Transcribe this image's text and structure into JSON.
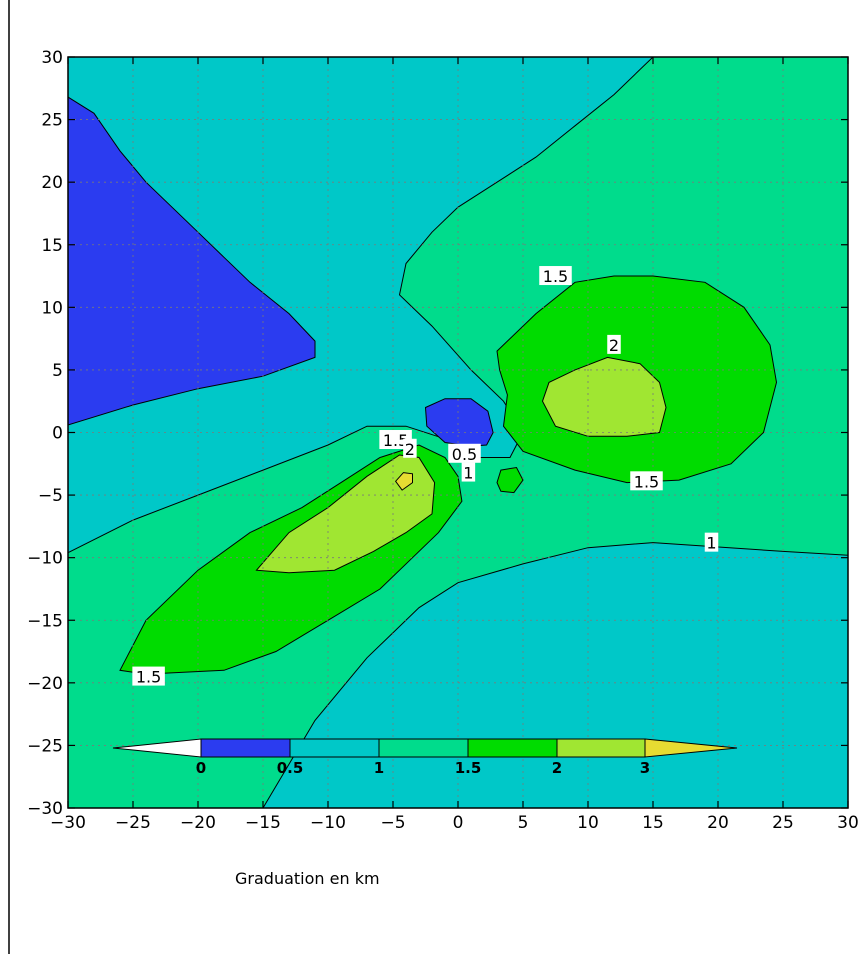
{
  "chart_data": {
    "type": "contour",
    "title": "",
    "xlabel": "",
    "ylabel": "",
    "xlim": [
      -30,
      30
    ],
    "ylim": [
      -30,
      30
    ],
    "xticks": [
      "−30",
      "−25",
      "−20",
      "−15",
      "−10",
      "−5",
      "0",
      "5",
      "10",
      "15",
      "20",
      "25",
      "30"
    ],
    "yticks": [
      "30",
      "25",
      "20",
      "15",
      "10",
      "5",
      "0",
      "−5",
      "−10",
      "−15",
      "−20",
      "−25",
      "−30"
    ],
    "grid": true,
    "levels": [
      0,
      0.5,
      1,
      1.5,
      2,
      3
    ],
    "colorbar": {
      "title": "Graduation en km",
      "labels": [
        "0",
        "0.5",
        "1",
        "1.5",
        "2",
        "3"
      ],
      "colors": [
        "#ffffff",
        "#2b3cf0",
        "#00c8c8",
        "#00dc8c",
        "#00dc00",
        "#a0e632",
        "#e6dc32"
      ],
      "placement": "bottom"
    },
    "regions": [
      {
        "level": "1-1.5",
        "color": "#00dc8c",
        "polygon": [
          [
            15,
            30
          ],
          [
            30,
            30
          ],
          [
            30,
            -9.8
          ],
          [
            25,
            -9.5
          ],
          [
            15,
            -8.8
          ],
          [
            10,
            -9.2
          ],
          [
            5,
            -10.5
          ],
          [
            0,
            -12
          ],
          [
            -3,
            -14
          ],
          [
            -7,
            -18
          ],
          [
            -11,
            -23
          ],
          [
            -15,
            -30
          ],
          [
            -30,
            -30
          ],
          [
            -30,
            -9.6
          ],
          [
            -25,
            -7
          ],
          [
            -20,
            -5
          ],
          [
            -15,
            -3
          ],
          [
            -10,
            -1
          ],
          [
            -7,
            0.5
          ],
          [
            -4,
            0.5
          ],
          [
            -1,
            -0.5
          ],
          [
            1.5,
            -2
          ],
          [
            4,
            -2
          ],
          [
            5,
            0
          ],
          [
            3.5,
            2.5
          ],
          [
            1,
            5
          ],
          [
            -2,
            8.5
          ],
          [
            -4.5,
            11
          ],
          [
            -4,
            13.5
          ],
          [
            -2,
            16
          ],
          [
            0,
            18
          ],
          [
            3,
            20
          ],
          [
            6,
            22
          ],
          [
            9,
            24.5
          ],
          [
            12,
            27
          ],
          [
            15,
            30
          ]
        ]
      },
      {
        "level": "0-0.5",
        "color": "#2b3cf0",
        "polygon": [
          [
            -30,
            26.8
          ],
          [
            -28,
            25.5
          ],
          [
            -26,
            22.5
          ],
          [
            -24,
            20
          ],
          [
            -22,
            18
          ],
          [
            -20,
            16
          ],
          [
            -18,
            14
          ],
          [
            -16,
            12
          ],
          [
            -13,
            9.5
          ],
          [
            -11,
            7.3
          ],
          [
            -11,
            6
          ],
          [
            -15,
            4.5
          ],
          [
            -20,
            3.5
          ],
          [
            -25,
            2.2
          ],
          [
            -30,
            0.6
          ]
        ]
      },
      {
        "level": "0-0.5",
        "color": "#2b3cf0",
        "polygon": [
          [
            -2.5,
            2
          ],
          [
            -1,
            2.7
          ],
          [
            1,
            2.7
          ],
          [
            2.3,
            1.7
          ],
          [
            2.7,
            0
          ],
          [
            2.2,
            -1
          ],
          [
            1,
            -1.1
          ],
          [
            -1,
            -0.8
          ],
          [
            -2.4,
            0.5
          ]
        ]
      },
      {
        "level": "1.5-2",
        "color": "#00dc00",
        "polygon": [
          [
            3,
            6.5
          ],
          [
            6,
            9.5
          ],
          [
            9,
            12
          ],
          [
            12,
            12.5
          ],
          [
            15,
            12.5
          ],
          [
            19,
            12
          ],
          [
            22,
            10
          ],
          [
            24,
            7
          ],
          [
            24.5,
            4
          ],
          [
            23.5,
            0
          ],
          [
            21,
            -2.5
          ],
          [
            17,
            -3.8
          ],
          [
            13,
            -4
          ],
          [
            9,
            -3
          ],
          [
            5,
            -1.5
          ],
          [
            3.5,
            0.5
          ],
          [
            3.8,
            3
          ],
          [
            3.2,
            5
          ]
        ]
      },
      {
        "level": "2-3",
        "color": "#a0e632",
        "polygon": [
          [
            6.5,
            2.5
          ],
          [
            7,
            4
          ],
          [
            9,
            5
          ],
          [
            11.5,
            6
          ],
          [
            14,
            5.5
          ],
          [
            15.5,
            4
          ],
          [
            16,
            2
          ],
          [
            15.5,
            0
          ],
          [
            13,
            -0.3
          ],
          [
            10,
            -0.3
          ],
          [
            7.5,
            0.5
          ]
        ]
      },
      {
        "level": "1.5-2",
        "color": "#00dc00",
        "polygon": [
          [
            -25.5,
            -18
          ],
          [
            -24,
            -15
          ],
          [
            -20,
            -11
          ],
          [
            -16,
            -8
          ],
          [
            -12,
            -6
          ],
          [
            -9,
            -4
          ],
          [
            -6,
            -2
          ],
          [
            -3,
            -1
          ],
          [
            -1,
            -2
          ],
          [
            0,
            -3.5
          ],
          [
            0.3,
            -5.5
          ],
          [
            -1.5,
            -8
          ],
          [
            -3.5,
            -10
          ],
          [
            -6,
            -12.5
          ],
          [
            -10,
            -15
          ],
          [
            -14,
            -17.5
          ],
          [
            -18,
            -19
          ],
          [
            -24,
            -19.3
          ],
          [
            -26,
            -19
          ]
        ]
      },
      {
        "level": "2-3",
        "color": "#a0e632",
        "polygon": [
          [
            -15.5,
            -11
          ],
          [
            -13,
            -8
          ],
          [
            -10,
            -6
          ],
          [
            -7,
            -3.5
          ],
          [
            -4.5,
            -1.8
          ],
          [
            -3,
            -2
          ],
          [
            -1.8,
            -4
          ],
          [
            -2,
            -6.5
          ],
          [
            -4,
            -8
          ],
          [
            -6.5,
            -9.5
          ],
          [
            -9.5,
            -11
          ],
          [
            -13,
            -11.2
          ]
        ]
      },
      {
        "level": "3+",
        "color": "#e6dc32",
        "polygon": [
          [
            -4.8,
            -3.9
          ],
          [
            -4.2,
            -3.2
          ],
          [
            -3.5,
            -3.3
          ],
          [
            -3.5,
            -4
          ],
          [
            -4.3,
            -4.6
          ]
        ]
      },
      {
        "level": "1.5-2",
        "color": "#00dc00",
        "polygon": [
          [
            3,
            -4
          ],
          [
            3.3,
            -3
          ],
          [
            4.5,
            -2.8
          ],
          [
            5,
            -3.8
          ],
          [
            4.3,
            -4.8
          ],
          [
            3.3,
            -4.7
          ]
        ]
      }
    ],
    "contour_labels": [
      {
        "text": "1.5",
        "x": 7.5,
        "y": 12.5
      },
      {
        "text": "2",
        "x": 12,
        "y": 7
      },
      {
        "text": "1.5",
        "x": 14.5,
        "y": -3.9
      },
      {
        "text": "1",
        "x": 19.5,
        "y": -8.8
      },
      {
        "text": "1.5",
        "x": -4.8,
        "y": -0.6
      },
      {
        "text": "2",
        "x": -3.7,
        "y": -1.3
      },
      {
        "text": "0.5",
        "x": 0.5,
        "y": -1.7
      },
      {
        "text": "1",
        "x": 0.8,
        "y": -3.2
      },
      {
        "text": "1.5",
        "x": -23.8,
        "y": -19.5
      }
    ]
  }
}
